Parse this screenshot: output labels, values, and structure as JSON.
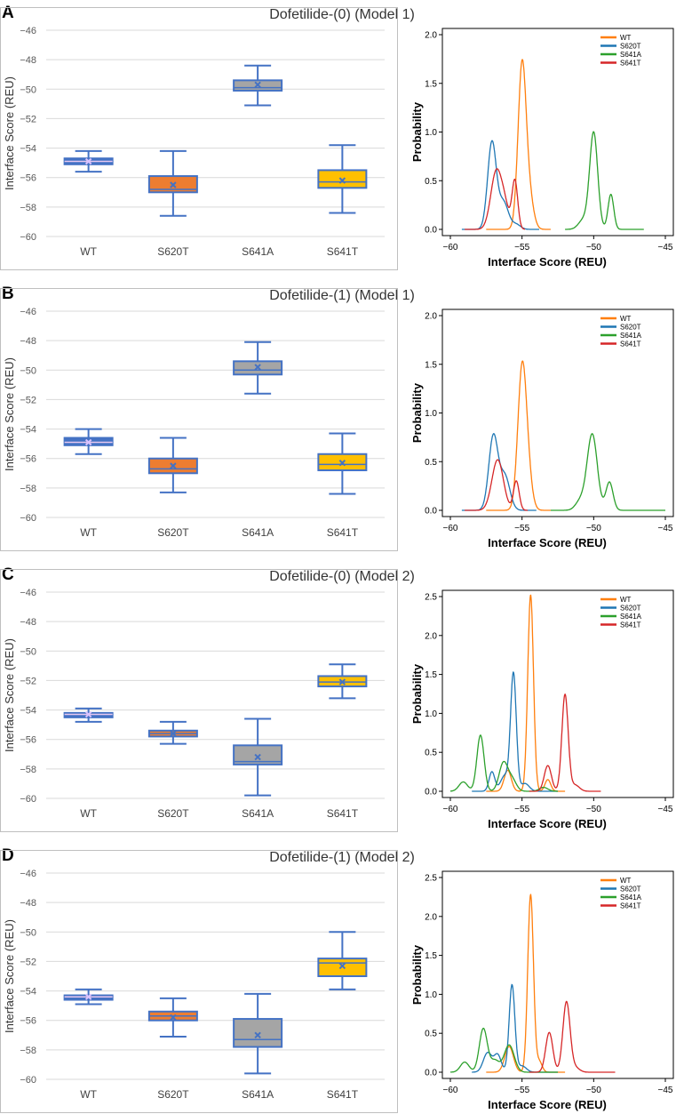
{
  "chart_data": [
    {
      "panel": "A",
      "type": "box",
      "title": "Dofetilide-(0) (Model 1)",
      "ylabel": "Interface Score (REU)",
      "ylim": [
        -60,
        -46
      ],
      "yticks": [
        -46,
        -48,
        -50,
        -52,
        -54,
        -56,
        -58,
        -60
      ],
      "categories": [
        "WT",
        "S620T",
        "S641A",
        "S641T"
      ],
      "colors": [
        "#4472c4",
        "#ed7d31",
        "#a5a5a5",
        "#ffc000"
      ],
      "boxes": [
        {
          "min": -55.6,
          "q1": -55.1,
          "median": -54.9,
          "q3": -54.7,
          "max": -54.2,
          "mean": -54.9
        },
        {
          "min": -58.6,
          "q1": -57.0,
          "median": -56.8,
          "q3": -55.9,
          "max": -54.2,
          "mean": -56.5
        },
        {
          "min": -51.1,
          "q1": -50.1,
          "median": -49.9,
          "q3": -49.4,
          "max": -48.4,
          "mean": -49.7
        },
        {
          "min": -58.4,
          "q1": -56.7,
          "median": -56.3,
          "q3": -55.5,
          "max": -53.8,
          "mean": -56.2
        }
      ]
    },
    {
      "panel": "A",
      "type": "line",
      "xlabel": "Interface Score (REU)",
      "ylabel": "Probability",
      "xlim": [
        -60,
        -45
      ],
      "xticks": [
        -60,
        -55,
        -50,
        -45
      ],
      "ylim": [
        0,
        2
      ],
      "yticks": [
        0.0,
        0.5,
        1.0,
        1.5,
        2.0
      ],
      "series": [
        {
          "name": "WT",
          "color": "#ff7f0e",
          "xrange": [
            -57.5,
            -53
          ],
          "peaks": [
            {
              "c": -55,
              "h": 1.66,
              "w": 0.28
            },
            {
              "c": -54.5,
              "h": 0.32,
              "w": 0.3
            }
          ]
        },
        {
          "name": "S620T",
          "color": "#1f77b4",
          "xrange": [
            -59.2,
            -53.8
          ],
          "peaks": [
            {
              "c": -57.1,
              "h": 0.89,
              "w": 0.3
            },
            {
              "c": -56.3,
              "h": 0.28,
              "w": 0.35
            },
            {
              "c": -55.4,
              "h": 0.05,
              "w": 0.3
            }
          ]
        },
        {
          "name": "S641A",
          "color": "#2ca02c",
          "xrange": [
            -52,
            -46.5
          ],
          "peaks": [
            {
              "c": -50,
              "h": 0.99,
              "w": 0.28
            },
            {
              "c": -48.8,
              "h": 0.36,
              "w": 0.2
            },
            {
              "c": -50.7,
              "h": 0.1,
              "w": 0.35
            }
          ]
        },
        {
          "name": "S641T",
          "color": "#d62728",
          "xrange": [
            -59,
            -54.8
          ],
          "peaks": [
            {
              "c": -56.8,
              "h": 0.59,
              "w": 0.38
            },
            {
              "c": -55.5,
              "h": 0.5,
              "w": 0.2
            },
            {
              "c": -56.2,
              "h": 0.2,
              "w": 0.3
            }
          ]
        }
      ]
    },
    {
      "panel": "B",
      "type": "box",
      "title": "Dofetilide-(1) (Model 1)",
      "ylabel": "Interface Score (REU)",
      "ylim": [
        -60,
        -46
      ],
      "yticks": [
        -46,
        -48,
        -50,
        -52,
        -54,
        -56,
        -58,
        -60
      ],
      "categories": [
        "WT",
        "S620T",
        "S641A",
        "S641T"
      ],
      "colors": [
        "#4472c4",
        "#ed7d31",
        "#a5a5a5",
        "#ffc000"
      ],
      "boxes": [
        {
          "min": -55.7,
          "q1": -55.1,
          "median": -54.9,
          "q3": -54.6,
          "max": -54.0,
          "mean": -54.9
        },
        {
          "min": -58.3,
          "q1": -57.0,
          "median": -56.7,
          "q3": -56.0,
          "max": -54.6,
          "mean": -56.5
        },
        {
          "min": -51.6,
          "q1": -50.3,
          "median": -50.0,
          "q3": -49.4,
          "max": -48.1,
          "mean": -49.8
        },
        {
          "min": -58.4,
          "q1": -56.8,
          "median": -56.4,
          "q3": -55.7,
          "max": -54.3,
          "mean": -56.3
        }
      ]
    },
    {
      "panel": "B",
      "type": "line",
      "xlabel": "Interface Score (REU)",
      "ylabel": "Probability",
      "xlim": [
        -60,
        -45
      ],
      "xticks": [
        -60,
        -55,
        -50,
        -45
      ],
      "ylim": [
        0,
        2
      ],
      "yticks": [
        0.0,
        0.5,
        1.0,
        1.5,
        2.0
      ],
      "series": [
        {
          "name": "WT",
          "color": "#ff7f0e",
          "xrange": [
            -57.5,
            -53
          ],
          "peaks": [
            {
              "c": -55,
              "h": 1.4,
              "w": 0.3
            },
            {
              "c": -54.6,
              "h": 0.3,
              "w": 0.3
            }
          ]
        },
        {
          "name": "S620T",
          "color": "#1f77b4",
          "xrange": [
            -59.2,
            -54
          ],
          "peaks": [
            {
              "c": -57,
              "h": 0.76,
              "w": 0.32
            },
            {
              "c": -56.2,
              "h": 0.35,
              "w": 0.35
            }
          ]
        },
        {
          "name": "S641A",
          "color": "#2ca02c",
          "xrange": [
            -53,
            -45
          ],
          "peaks": [
            {
              "c": -50.1,
              "h": 0.78,
              "w": 0.35
            },
            {
              "c": -48.9,
              "h": 0.29,
              "w": 0.25
            },
            {
              "c": -50.9,
              "h": 0.1,
              "w": 0.35
            }
          ]
        },
        {
          "name": "S641T",
          "color": "#d62728",
          "xrange": [
            -59,
            -54.6
          ],
          "peaks": [
            {
              "c": -56.7,
              "h": 0.52,
              "w": 0.4
            },
            {
              "c": -55.4,
              "h": 0.3,
              "w": 0.2
            }
          ]
        }
      ]
    },
    {
      "panel": "C",
      "type": "box",
      "title": "Dofetilide-(0) (Model 2)",
      "ylabel": "Interface Score (REU)",
      "ylim": [
        -60,
        -46
      ],
      "yticks": [
        -46,
        -48,
        -50,
        -52,
        -54,
        -56,
        -58,
        -60
      ],
      "categories": [
        "WT",
        "S620T",
        "S641A",
        "S641T"
      ],
      "colors": [
        "#4472c4",
        "#ed7d31",
        "#a5a5a5",
        "#ffc000"
      ],
      "boxes": [
        {
          "min": -54.8,
          "q1": -54.5,
          "median": -54.3,
          "q3": -54.2,
          "max": -53.9,
          "mean": -54.3
        },
        {
          "min": -56.3,
          "q1": -55.8,
          "median": -55.6,
          "q3": -55.4,
          "max": -54.8,
          "mean": -55.6
        },
        {
          "min": -59.8,
          "q1": -57.7,
          "median": -57.5,
          "q3": -56.4,
          "max": -54.6,
          "mean": -57.2
        },
        {
          "min": -53.2,
          "q1": -52.4,
          "median": -52.1,
          "q3": -51.7,
          "max": -50.9,
          "mean": -52.1
        }
      ]
    },
    {
      "panel": "C",
      "type": "line",
      "xlabel": "Interface Score (REU)",
      "ylabel": "Probability",
      "xlim": [
        -60,
        -45
      ],
      "xticks": [
        -60,
        -55,
        -50,
        -45
      ],
      "ylim": [
        0,
        2.5
      ],
      "yticks": [
        0.0,
        0.5,
        1.0,
        1.5,
        2.0,
        2.5
      ],
      "series": [
        {
          "name": "WT",
          "color": "#ff7f0e",
          "xrange": [
            -57.5,
            -52
          ],
          "peaks": [
            {
              "c": -54.4,
              "h": 2.52,
              "w": 0.2
            },
            {
              "c": -56,
              "h": 0.27,
              "w": 0.25
            },
            {
              "c": -53.2,
              "h": 0.15,
              "w": 0.2
            }
          ]
        },
        {
          "name": "S620T",
          "color": "#1f77b4",
          "xrange": [
            -58.5,
            -52.5
          ],
          "peaks": [
            {
              "c": -55.6,
              "h": 1.5,
              "w": 0.2
            },
            {
              "c": -57.1,
              "h": 0.25,
              "w": 0.2
            },
            {
              "c": -56.2,
              "h": 0.2,
              "w": 0.3
            },
            {
              "c": -54.8,
              "h": 0.1,
              "w": 0.3
            }
          ]
        },
        {
          "name": "S641A",
          "color": "#2ca02c",
          "xrange": [
            -60,
            -52.5
          ],
          "peaks": [
            {
              "c": -57.9,
              "h": 0.72,
              "w": 0.25
            },
            {
              "c": -56.3,
              "h": 0.36,
              "w": 0.3
            },
            {
              "c": -59.1,
              "h": 0.12,
              "w": 0.3
            },
            {
              "c": -55.7,
              "h": 0.15,
              "w": 0.3
            },
            {
              "c": -53.5,
              "h": 0.05,
              "w": 0.3
            }
          ]
        },
        {
          "name": "S641T",
          "color": "#d62728",
          "xrange": [
            -54.5,
            -49.5
          ],
          "peaks": [
            {
              "c": -52,
              "h": 1.24,
              "w": 0.22
            },
            {
              "c": -53.2,
              "h": 0.33,
              "w": 0.25
            },
            {
              "c": -51.3,
              "h": 0.08,
              "w": 0.3
            }
          ]
        }
      ]
    },
    {
      "panel": "D",
      "type": "box",
      "title": "Dofetilide-(1) (Model 2)",
      "ylabel": "Interface Score (REU)",
      "ylim": [
        -60,
        -46
      ],
      "yticks": [
        -46,
        -48,
        -50,
        -52,
        -54,
        -56,
        -58,
        -60
      ],
      "categories": [
        "WT",
        "S620T",
        "S641A",
        "S641T"
      ],
      "colors": [
        "#4472c4",
        "#ed7d31",
        "#a5a5a5",
        "#ffc000"
      ],
      "boxes": [
        {
          "min": -54.9,
          "q1": -54.6,
          "median": -54.4,
          "q3": -54.3,
          "max": -53.9,
          "mean": -54.4
        },
        {
          "min": -57.1,
          "q1": -56.0,
          "median": -55.7,
          "q3": -55.4,
          "max": -54.5,
          "mean": -55.8
        },
        {
          "min": -59.6,
          "q1": -57.8,
          "median": -57.3,
          "q3": -55.9,
          "max": -54.2,
          "mean": -57.0
        },
        {
          "min": -53.9,
          "q1": -53.0,
          "median": -52.1,
          "q3": -51.8,
          "max": -50.0,
          "mean": -52.3
        }
      ]
    },
    {
      "panel": "D",
      "type": "line",
      "xlabel": "Interface Score (REU)",
      "ylabel": "Probability",
      "xlim": [
        -60,
        -45
      ],
      "xticks": [
        -60,
        -55,
        -50,
        -45
      ],
      "ylim": [
        0,
        2.5
      ],
      "yticks": [
        0.0,
        0.5,
        1.0,
        1.5,
        2.0,
        2.5
      ],
      "series": [
        {
          "name": "WT",
          "color": "#ff7f0e",
          "xrange": [
            -57.5,
            -52
          ],
          "peaks": [
            {
              "c": -54.4,
              "h": 2.28,
              "w": 0.2
            },
            {
              "c": -55.9,
              "h": 0.33,
              "w": 0.3
            },
            {
              "c": -53.8,
              "h": 0.14,
              "w": 0.2
            }
          ]
        },
        {
          "name": "S620T",
          "color": "#1f77b4",
          "xrange": [
            -58.5,
            -52.5
          ],
          "peaks": [
            {
              "c": -55.7,
              "h": 1.12,
              "w": 0.2
            },
            {
              "c": -57.4,
              "h": 0.25,
              "w": 0.3
            },
            {
              "c": -56.7,
              "h": 0.22,
              "w": 0.25
            },
            {
              "c": -55,
              "h": 0.08,
              "w": 0.3
            }
          ]
        },
        {
          "name": "S641A",
          "color": "#2ca02c",
          "xrange": [
            -60,
            -52.5
          ],
          "peaks": [
            {
              "c": -57.7,
              "h": 0.56,
              "w": 0.28
            },
            {
              "c": -55.9,
              "h": 0.35,
              "w": 0.35
            },
            {
              "c": -59,
              "h": 0.13,
              "w": 0.3
            },
            {
              "c": -56.9,
              "h": 0.15,
              "w": 0.3
            }
          ]
        },
        {
          "name": "S641T",
          "color": "#d62728",
          "xrange": [
            -54.5,
            -48.5
          ],
          "peaks": [
            {
              "c": -51.9,
              "h": 0.9,
              "w": 0.25
            },
            {
              "c": -53.1,
              "h": 0.51,
              "w": 0.25
            },
            {
              "c": -51.3,
              "h": 0.06,
              "w": 0.3
            }
          ]
        }
      ]
    }
  ]
}
